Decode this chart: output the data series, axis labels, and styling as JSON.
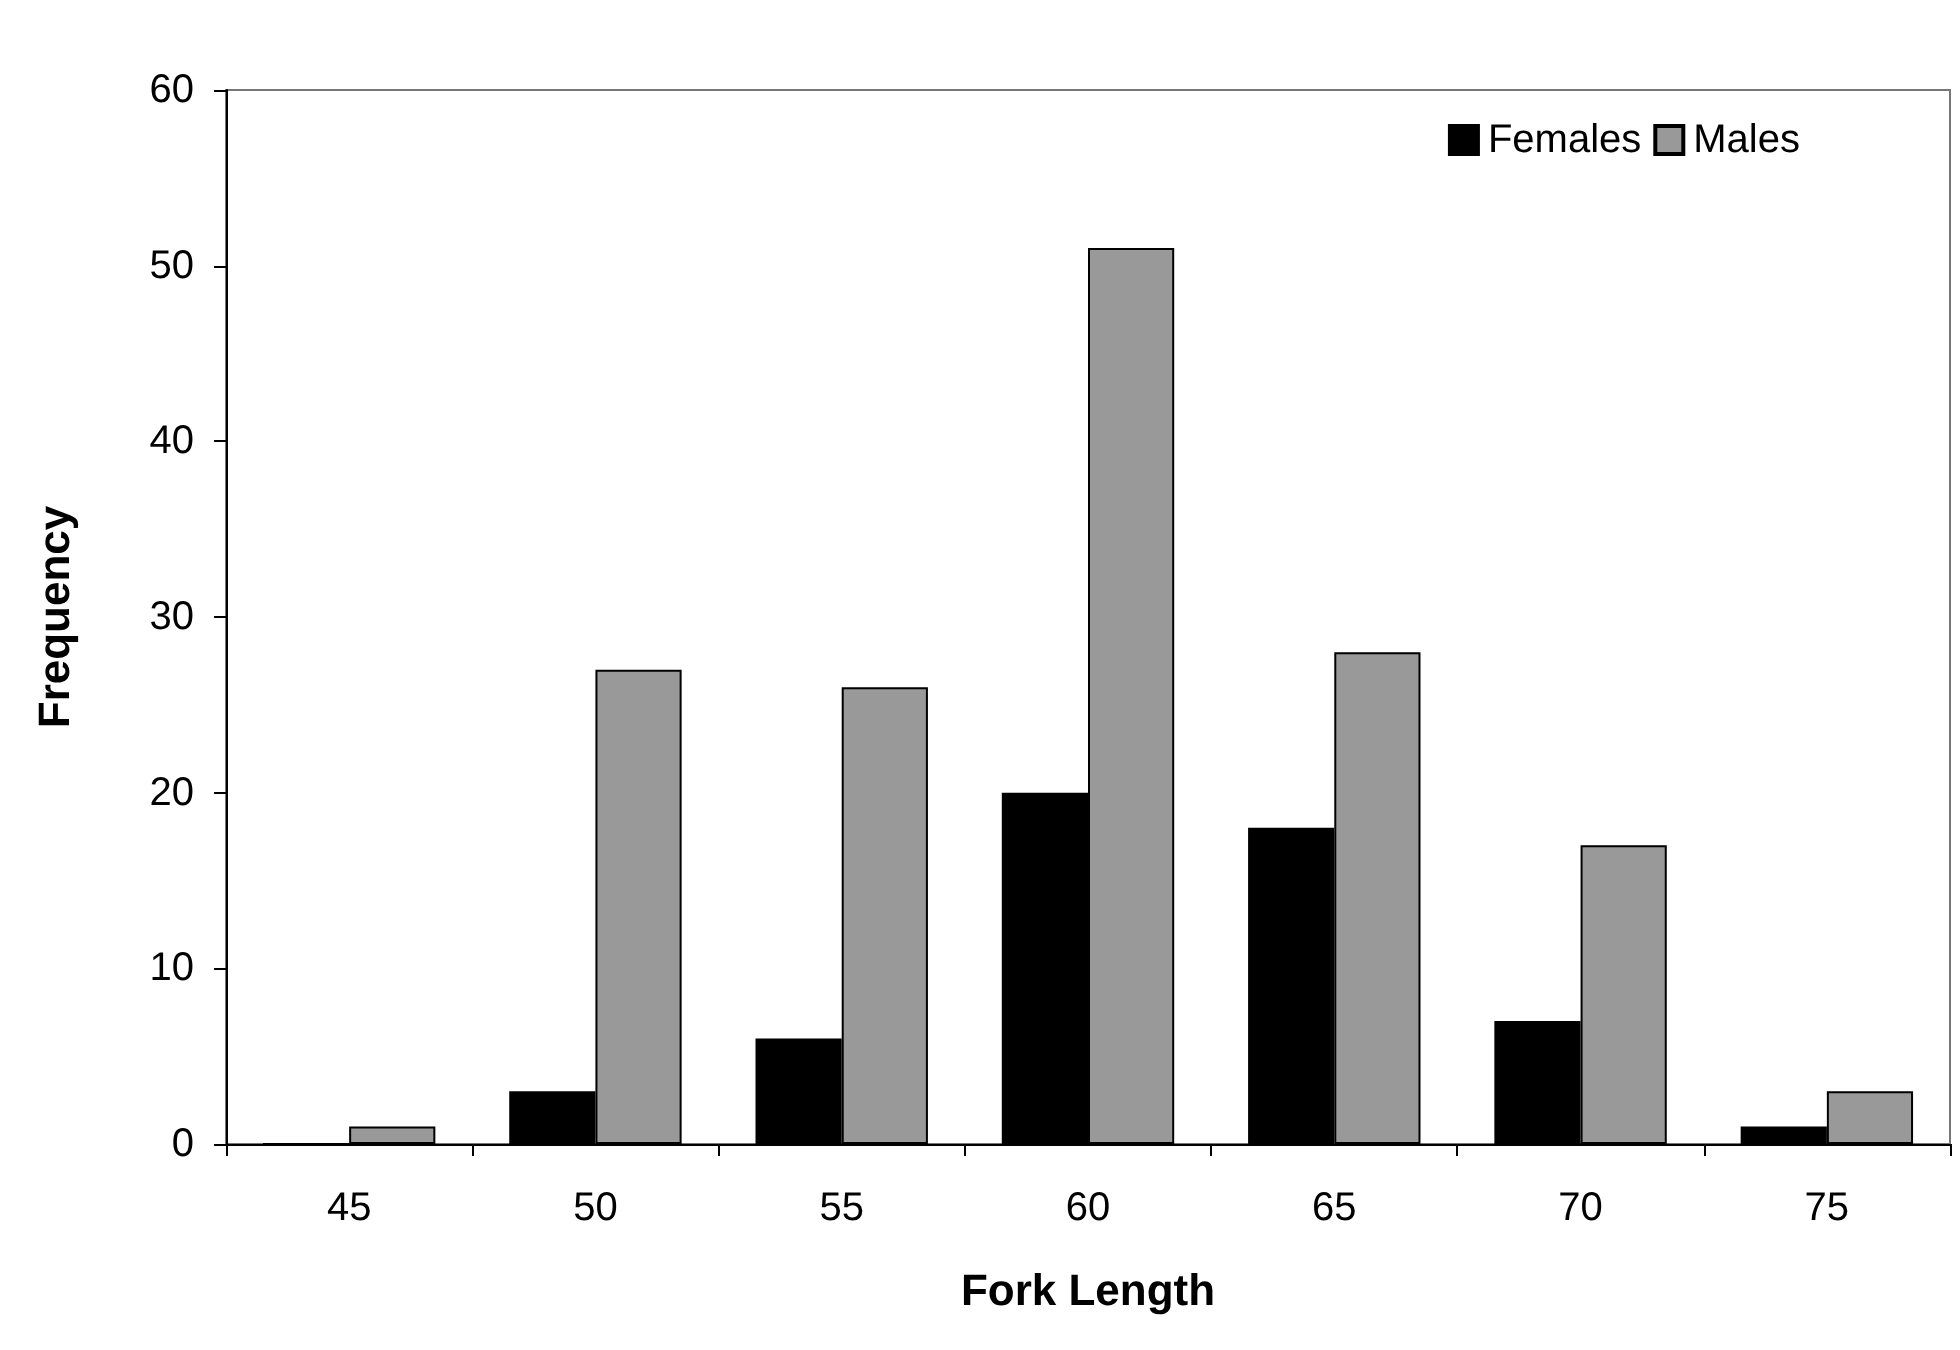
{
  "chart_data": {
    "type": "bar",
    "xlabel": "Fork Length",
    "ylabel": "Frequency",
    "categories": [
      "45",
      "50",
      "55",
      "60",
      "65",
      "70",
      "75"
    ],
    "series": [
      {
        "name": "Females",
        "color": "#000000",
        "values": [
          0,
          3,
          6,
          20,
          18,
          7,
          1
        ]
      },
      {
        "name": "Males",
        "color": "#999999",
        "values": [
          1,
          27,
          26,
          51,
          28,
          17,
          3
        ]
      }
    ],
    "ylim": [
      0,
      60
    ],
    "yticks": [
      0,
      10,
      20,
      30,
      40,
      50,
      60
    ],
    "grid": false,
    "legend": "top right"
  }
}
